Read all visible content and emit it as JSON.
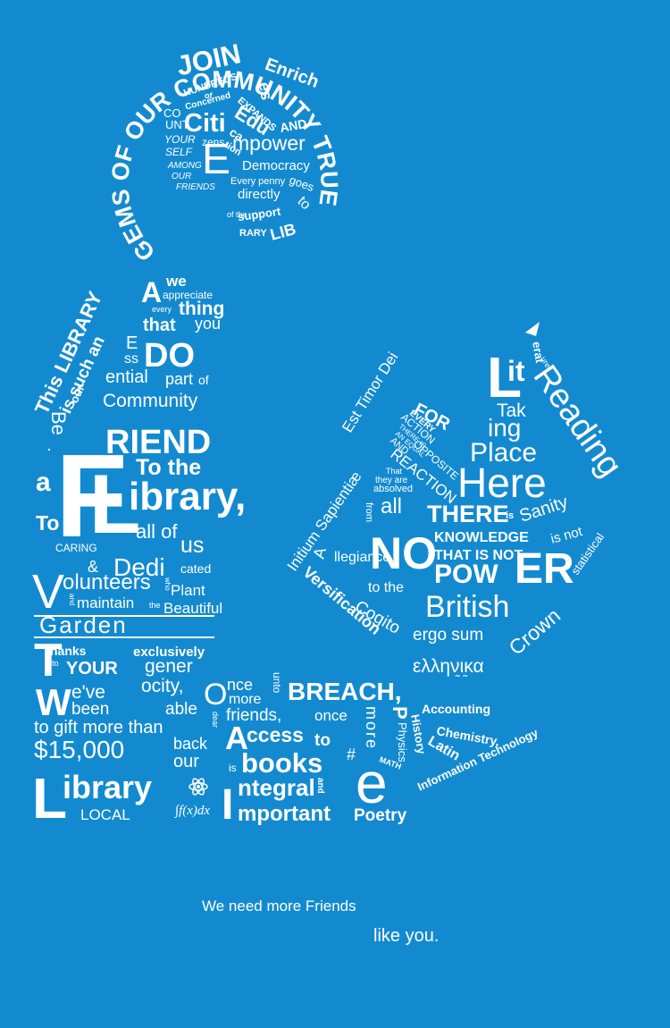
{
  "poster": {
    "background_color": "#138ad0",
    "text_color": "#ffffff",
    "tagline_line1": "We need more Friends",
    "tagline_line2": "like you.",
    "head": {
      "ring": "GEMS OF OUR COMMUNITY TRUE",
      "join": "JOIN",
      "hundreds": "HUNDREDS",
      "of": "of",
      "concerned": "Concerned",
      "citi": "Citi",
      "zens": "zens",
      "enrich": "Enrich",
      "es": "es",
      "expands": "EXPANDS",
      "and": "AND",
      "edu": "Edu",
      "ca": "ca",
      "tion": "tion",
      "co": "CO",
      "unt": "UNT",
      "your": "YOUR",
      "self": "SELF",
      "among": "AMONG",
      "our": "OUR",
      "friends": "FRIENDS",
      "e_big": "E",
      "mpower": "mpower",
      "democracy": "Democracy",
      "every_penny": "Every penny",
      "goes": "goes",
      "directly": "directly",
      "to": "to",
      "support": "support",
      "of_the": "of the",
      "lib": "LIB",
      "rary": "RARY"
    },
    "figure": {
      "this_library": "This LIBRARY",
      "is_such_an": "is such an",
      "our": "our",
      "a_big": "A",
      "we": "we",
      "appreciate": "appreciate",
      "every": "every",
      "thing": "thing",
      "that": "that",
      "you": "you",
      "e": "E",
      "ss": "ss",
      "do": "DO",
      "ential": "ential",
      "part": "part",
      "of": "of",
      "community": "Community",
      "be_a": "Be",
      "a": "a",
      "f_big": "F",
      "riend": "RIEND",
      "to_the": "To the",
      "l_big": "L",
      "ibrary": "ibrary,",
      "to": "To",
      "all_of": "all of",
      "us": "us",
      "caring": "CARING",
      "amp": "&",
      "dedi": "Dedi",
      "cated": "cated",
      "v_big": "V",
      "olunteers": "olunteers",
      "who": "who",
      "plant": "Plant",
      "and": "and",
      "maintain": "maintain",
      "the": "the",
      "beautiful": "Beautiful",
      "garden": "Garden",
      "t_big": "T",
      "hanks": "hanks",
      "to_small": "to",
      "your": "YOUR",
      "exclusively": "exclusively",
      "gener": "gener",
      "ocity": "ocity,",
      "w_big": "W",
      "eve": "e've",
      "been": "been",
      "able": "able",
      "to_gift": "to gift more than",
      "amount": "$15,000",
      "back": "back",
      "our2": "our",
      "library_l": "L",
      "library_rest": "ibrary",
      "local": "LOCAL",
      "integral_formula": "∫f(x)dx"
    },
    "lap": {
      "o_big": "O",
      "nce": "nce",
      "more": "more",
      "unto": "unto",
      "breach": "BREACH,",
      "dear": "dear",
      "friends": "friends,",
      "once": "once",
      "more_vertical": "more",
      "a_big": "A",
      "ccess": "ccess",
      "to": "to",
      "is": "is",
      "books": "books",
      "i_big": "I",
      "ntegral": "ntegral",
      "and": "and",
      "mportant": "mportant",
      "hash": "#",
      "e_big": "e",
      "poetry": "Poetry",
      "physics": "Physics",
      "math": "MATH",
      "history": "History",
      "accounting": "Accounting",
      "chemistry": "Chemistry,",
      "latin": "Latin",
      "information_technology": "Information Technology",
      "greek": "ελληνικα"
    },
    "book": {
      "lit_l": "L",
      "lit_it": "it",
      "lit_era": "erat",
      "lit_ure": "ure",
      "reading": "Reading",
      "for": "FOR",
      "tak": "Tak",
      "ing": "ing",
      "place": "Place",
      "here": "Here",
      "est_timor_dei": "Est Timor Dei",
      "action": "ACTION",
      "every": "EVERY",
      "there_is": "THERE IS",
      "an_equal": "AN EQUAL",
      "and": "AND",
      "opposite": "OPPOSITE",
      "reaction": "REACTION",
      "that": "That",
      "they_are": "they are",
      "absolved": "absolved",
      "initium": "Initium Sapientiæ",
      "from": "from",
      "all": "all",
      "there": "THERE",
      "is": "is",
      "sanity": "Sanity",
      "is_not": "is not",
      "statistical": "statistical",
      "a_big": "A",
      "llegiance": "llegiance",
      "no": "NO",
      "knowledge": "KNOWLEDGE",
      "that_is_not": "THAT IS NOT",
      "pow": "POW",
      "er": "ER",
      "to_the": "to the",
      "british": "British",
      "crown": "Crown",
      "versification": "Versification",
      "cogito": "Cogito",
      "ergo_sum": "ergo sum"
    }
  }
}
